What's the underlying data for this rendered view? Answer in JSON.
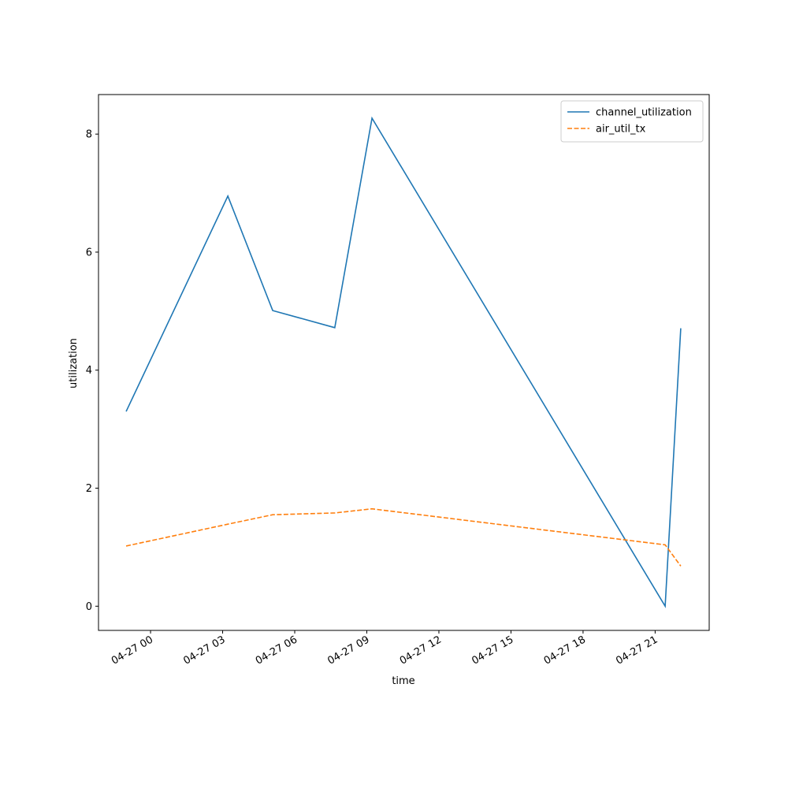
{
  "chart_data": {
    "type": "line",
    "x_label": "time",
    "y_label": "utilization",
    "x": [
      "04-26 22:59",
      "04-27 03:13",
      "04-27 05:05",
      "04-27 07:40",
      "04-27 09:13",
      "04-27 21:25",
      "04-27 22:04"
    ],
    "series": [
      {
        "name": "channel_utilization",
        "color": "#1f77b4",
        "dash": "solid",
        "values": [
          3.3,
          6.95,
          5.01,
          4.72,
          8.27,
          0.0,
          4.71
        ]
      },
      {
        "name": "air_util_tx",
        "color": "#ff7f0e",
        "dash": "dashed",
        "values": [
          1.02,
          1.39,
          1.55,
          1.58,
          1.65,
          1.04,
          0.68
        ]
      }
    ],
    "xlim": [
      "04-26 21:50",
      "04-27 23:15"
    ],
    "xticks": [
      "04-27 00",
      "04-27 03",
      "04-27 06",
      "04-27 09",
      "04-27 12",
      "04-27 15",
      "04-27 18",
      "04-27 21"
    ],
    "ylim": [
      -0.41,
      8.67
    ],
    "yticks": [
      0,
      2,
      4,
      6,
      8
    ],
    "legend": "upper right"
  }
}
